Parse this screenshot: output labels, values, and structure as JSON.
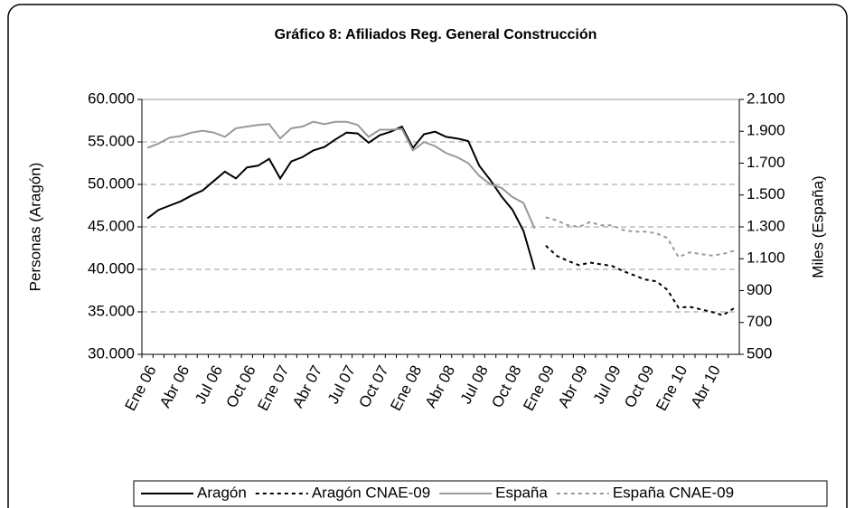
{
  "chart_data": {
    "type": "line",
    "title": "Gráfico 8: Afiliados Reg. General Construcción",
    "ylabel": "Personas (Aragón)",
    "y2label": "Miles (España)",
    "categories": [
      "Ene 06",
      null,
      null,
      "Abr 06",
      null,
      null,
      "Jul 06",
      null,
      null,
      "Oct 06",
      null,
      null,
      "Ene 07",
      null,
      null,
      "Abr 07",
      null,
      null,
      "Jul 07",
      null,
      null,
      "Oct 07",
      null,
      null,
      "Ene 08",
      null,
      null,
      "Abr 08",
      null,
      null,
      "Jul 08",
      null,
      null,
      "Oct 08",
      null,
      null,
      "Ene 09",
      null,
      null,
      "Abr 09",
      null,
      null,
      "Jul 09",
      null,
      null,
      "Oct 09",
      null,
      null,
      "Ene 10",
      null,
      null,
      "Abr 10",
      null,
      null
    ],
    "ylim": [
      30000,
      60000
    ],
    "yticks": [
      {
        "value": 30000,
        "label": "30.000"
      },
      {
        "value": 35000,
        "label": "35.000"
      },
      {
        "value": 40000,
        "label": "40.000"
      },
      {
        "value": 45000,
        "label": "45.000"
      },
      {
        "value": 50000,
        "label": "50.000"
      },
      {
        "value": 55000,
        "label": "55.000"
      },
      {
        "value": 60000,
        "label": "60.000"
      }
    ],
    "y2lim": [
      500,
      2100
    ],
    "y2ticks": [
      500,
      700,
      900,
      {
        "value": 1100,
        "label": "1.100"
      },
      {
        "value": 1300,
        "label": "1.300"
      },
      {
        "value": 1500,
        "label": "1.500"
      },
      {
        "value": 1700,
        "label": "1.700"
      },
      {
        "value": 1900,
        "label": "1.900"
      },
      {
        "value": 2100,
        "label": "2.100"
      }
    ],
    "grid": true,
    "legend": "bottom",
    "series": [
      {
        "name": "Aragón",
        "color": "#000000",
        "style": "solid",
        "values": [
          46000,
          47000,
          47500,
          48000,
          48700,
          49300,
          50400,
          51500,
          50700,
          52000,
          52200,
          53000,
          50700,
          52700,
          53200,
          54000,
          54400,
          55300,
          56100,
          56000,
          54900,
          55800,
          56200,
          56800,
          54300,
          55900,
          56200,
          55600,
          55400,
          55100,
          52200,
          50500,
          48600,
          47000,
          44500,
          40000,
          null,
          null,
          null,
          null,
          null,
          null,
          null,
          null,
          null,
          null,
          null,
          null,
          null,
          null,
          null,
          null,
          null,
          null
        ]
      },
      {
        "name": "Aragón CNAE-09",
        "color": "#000000",
        "style": "dashed",
        "values": [
          null,
          null,
          null,
          null,
          null,
          null,
          null,
          null,
          null,
          null,
          null,
          null,
          null,
          null,
          null,
          null,
          null,
          null,
          null,
          null,
          null,
          null,
          null,
          null,
          null,
          null,
          null,
          null,
          null,
          null,
          null,
          null,
          null,
          null,
          null,
          null,
          42800,
          41600,
          41000,
          40500,
          40800,
          40600,
          40400,
          39800,
          39300,
          38800,
          38600,
          37600,
          35500,
          35600,
          35300,
          35000,
          34600,
          35400
        ]
      },
      {
        "name": "España",
        "color": "#999999",
        "style": "solid",
        "axis": "y2",
        "values": [
          1796,
          1823,
          1860,
          1870,
          1892,
          1903,
          1892,
          1865,
          1919,
          1930,
          1940,
          1945,
          1855,
          1919,
          1930,
          1960,
          1945,
          1960,
          1960,
          1940,
          1865,
          1910,
          1910,
          1915,
          1780,
          1833,
          1807,
          1763,
          1737,
          1700,
          1620,
          1567,
          1545,
          1487,
          1450,
          1290,
          null,
          null,
          null,
          null,
          null,
          null,
          null,
          null,
          null,
          null,
          null,
          null,
          null,
          null,
          null,
          null,
          null,
          null
        ]
      },
      {
        "name": "España CNAE-09",
        "color": "#999999",
        "style": "dashed",
        "axis": "y2",
        "values": [
          null,
          null,
          null,
          null,
          null,
          null,
          null,
          null,
          null,
          null,
          null,
          null,
          null,
          null,
          null,
          null,
          null,
          null,
          null,
          null,
          null,
          null,
          null,
          null,
          null,
          null,
          null,
          null,
          null,
          null,
          null,
          null,
          null,
          null,
          null,
          null,
          1360,
          1340,
          1310,
          1300,
          1330,
          1310,
          1310,
          1280,
          1270,
          1270,
          1260,
          1230,
          1110,
          1140,
          1130,
          1120,
          1130,
          1150
        ]
      }
    ]
  }
}
